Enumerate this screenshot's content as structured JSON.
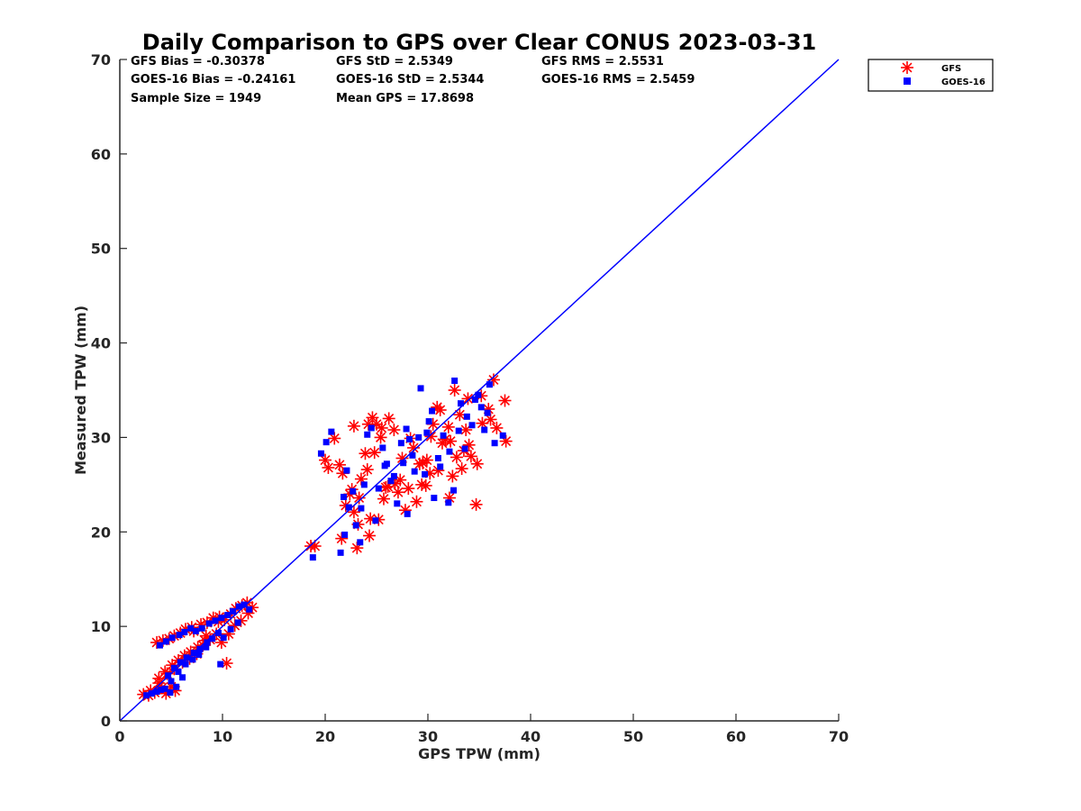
{
  "chart_data": {
    "type": "scatter",
    "title": "Daily Comparison to GPS over Clear CONUS 2023-03-31",
    "xlabel": "GPS TPW (mm)",
    "ylabel": "Measured TPW (mm)",
    "xlim": [
      0,
      70
    ],
    "ylim": [
      0,
      70
    ],
    "xticks": [
      "0",
      "10",
      "20",
      "30",
      "40",
      "50",
      "60",
      "70"
    ],
    "yticks": [
      "0",
      "10",
      "20",
      "30",
      "40",
      "50",
      "60",
      "70"
    ],
    "grid": false,
    "legend_position": "outside-top-right",
    "annotations": [
      "GFS Bias = -0.30378",
      "GFS StD = 2.5349",
      "GFS RMS = 2.5531",
      "GOES-16 Bias = -0.24161",
      "GOES-16 StD = 2.5344",
      "GOES-16 RMS = 2.5459",
      "Sample Size = 1949",
      "Mean GPS = 17.8698"
    ],
    "reference_line": {
      "x": [
        0,
        70
      ],
      "y": [
        0,
        70
      ],
      "color": "#0000ff"
    },
    "series": [
      {
        "name": "GFS",
        "marker": "asterisk",
        "color": "#ff0000",
        "x": [
          2.3,
          2.8,
          3.0,
          3.4,
          3.8,
          4.1,
          4.5,
          5.0,
          5.4,
          3.6,
          4.2,
          4.8,
          5.3,
          5.9,
          6.4,
          7.0,
          4.4,
          5.1,
          5.7,
          6.3,
          6.9,
          7.6,
          8.3,
          3.8,
          4.6,
          5.3,
          6.1,
          6.8,
          7.5,
          8.1,
          8.8,
          9.4,
          7.2,
          7.9,
          8.5,
          9.1,
          9.7,
          10.2,
          10.8,
          11.3,
          11.9,
          12.4,
          12.9,
          9.9,
          10.6,
          11.2,
          11.8,
          12.5,
          8.4,
          9.6,
          10.4,
          18.6,
          19.0,
          20.0,
          20.3,
          20.9,
          21.6,
          22.0,
          22.4,
          22.8,
          23.1,
          23.5,
          23.9,
          24.2,
          24.6,
          25.0,
          25.5,
          23.3,
          24.3,
          25.2,
          26.1,
          22.8,
          21.4,
          24.1,
          25.7,
          26.8,
          27.5,
          28.1,
          28.6,
          29.2,
          29.8,
          30.3,
          30.9,
          31.4,
          32.0,
          32.6,
          33.1,
          33.7,
          34.2,
          34.8,
          35.3,
          35.9,
          36.4,
          37.6,
          37.5,
          36.1,
          33.5,
          32.4,
          31.0,
          29.5,
          27.3,
          26.7,
          25.4,
          24.8,
          28.9,
          30.5,
          32.8,
          34.0,
          35.2,
          28.3,
          29.9,
          31.7,
          33.3,
          26.2,
          27.8,
          30.2,
          32.1,
          34.7,
          36.7,
          32.2,
          29.4,
          27.1,
          25.9,
          24.4,
          23.2,
          22.6,
          21.7,
          31.2,
          33.9
        ],
        "y": [
          2.8,
          2.7,
          3.2,
          3.0,
          4.0,
          3.5,
          2.9,
          3.6,
          3.2,
          8.3,
          8.5,
          8.7,
          9.0,
          9.3,
          9.7,
          9.9,
          5.2,
          5.9,
          6.4,
          6.9,
          7.3,
          7.8,
          8.5,
          4.5,
          5.0,
          5.5,
          6.2,
          6.6,
          7.1,
          8.0,
          8.6,
          9.2,
          9.5,
          10.2,
          10.4,
          10.9,
          11.0,
          10.7,
          11.3,
          11.9,
          12.2,
          12.5,
          12.0,
          8.3,
          9.2,
          10.1,
          10.6,
          11.4,
          9.0,
          10.5,
          6.1,
          18.5,
          18.5,
          27.6,
          26.8,
          29.9,
          19.3,
          22.8,
          24.0,
          22.1,
          18.3,
          25.6,
          28.3,
          31.4,
          32.1,
          31.4,
          31.0,
          23.6,
          19.6,
          21.3,
          24.8,
          31.2,
          27.1,
          26.6,
          23.5,
          25.1,
          27.8,
          24.6,
          28.9,
          27.2,
          24.9,
          30.1,
          33.2,
          29.4,
          31.1,
          35.0,
          32.4,
          30.8,
          28.0,
          27.2,
          31.5,
          33.0,
          36.1,
          29.6,
          33.9,
          31.9,
          28.6,
          25.9,
          26.5,
          27.3,
          25.5,
          30.8,
          30.0,
          28.4,
          23.2,
          31.4,
          27.9,
          29.2,
          34.4,
          29.9,
          27.6,
          29.8,
          26.7,
          32.0,
          22.3,
          26.2,
          23.6,
          22.9,
          31.0,
          29.6,
          25.0,
          24.2,
          24.7,
          21.4,
          20.8,
          24.5,
          26.2,
          32.9,
          34.1
        ]
      },
      {
        "name": "GOES-16",
        "marker": "square",
        "color": "#0000ff",
        "x": [
          2.6,
          3.1,
          3.6,
          4.0,
          4.4,
          4.9,
          5.5,
          3.9,
          4.5,
          5.1,
          5.8,
          6.3,
          6.9,
          4.7,
          5.3,
          5.9,
          6.5,
          7.2,
          7.8,
          8.5,
          5.0,
          5.7,
          6.4,
          7.1,
          7.7,
          8.4,
          9.0,
          9.6,
          8.0,
          8.7,
          9.3,
          9.9,
          10.5,
          11.0,
          11.6,
          12.1,
          12.6,
          10.1,
          10.8,
          11.5,
          9.8,
          7.4,
          6.1,
          18.8,
          19.6,
          20.1,
          20.6,
          21.5,
          21.9,
          22.3,
          22.7,
          23.0,
          23.4,
          23.8,
          24.1,
          24.5,
          25.2,
          25.8,
          26.4,
          27.0,
          27.6,
          28.2,
          28.7,
          29.3,
          29.9,
          30.4,
          31.0,
          31.5,
          32.1,
          32.6,
          33.2,
          33.8,
          34.3,
          34.9,
          35.5,
          36.0,
          36.5,
          37.3,
          29.7,
          32.5,
          31.2,
          33.6,
          28.0,
          30.6,
          26.7,
          24.9,
          23.5,
          22.1,
          21.8,
          25.6,
          27.9,
          29.1,
          34.6,
          35.8,
          32.0,
          30.1,
          28.5,
          26.0,
          27.4,
          33.0,
          35.2
        ],
        "y": [
          2.7,
          2.9,
          3.1,
          3.3,
          3.4,
          3.0,
          3.6,
          8.0,
          8.4,
          8.8,
          9.1,
          9.4,
          9.8,
          4.8,
          5.6,
          6.2,
          6.7,
          7.2,
          7.6,
          8.3,
          4.2,
          5.2,
          6.0,
          6.5,
          7.0,
          7.8,
          8.7,
          9.3,
          9.8,
          10.3,
          10.6,
          10.9,
          11.2,
          11.6,
          12.1,
          12.3,
          11.8,
          8.8,
          9.7,
          10.4,
          6.0,
          9.5,
          4.6,
          17.3,
          28.3,
          29.5,
          30.6,
          17.8,
          19.7,
          22.6,
          24.3,
          20.7,
          18.9,
          25.0,
          30.3,
          31.0,
          24.6,
          27.0,
          25.4,
          23.0,
          27.3,
          29.8,
          26.4,
          35.2,
          30.5,
          32.8,
          27.8,
          30.2,
          28.5,
          36.0,
          33.6,
          32.2,
          31.3,
          34.5,
          30.8,
          35.6,
          29.4,
          30.2,
          26.1,
          24.4,
          26.9,
          28.8,
          21.9,
          23.6,
          25.9,
          21.2,
          22.5,
          26.5,
          23.7,
          28.9,
          30.9,
          30.0,
          34.0,
          32.6,
          23.1,
          31.7,
          28.1,
          27.2,
          29.4,
          30.7,
          33.2
        ]
      }
    ]
  }
}
